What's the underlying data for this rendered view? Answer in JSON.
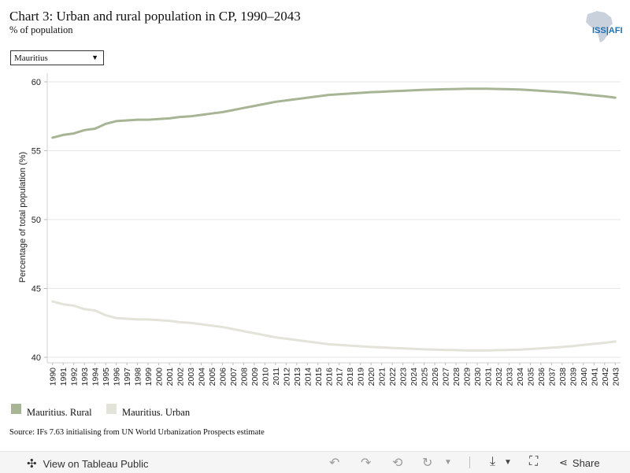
{
  "header": {
    "title": "Chart 3: Urban and rural population in CP, 1990–2043",
    "subtitle": "% of population",
    "logo_text": "ISS|AFI"
  },
  "filter": {
    "selected": "Mauritius"
  },
  "chart_data": {
    "type": "line",
    "ylabel": "Percentage of total population (%)",
    "xlabel": "",
    "ylim": [
      39.6,
      60.4
    ],
    "yticks": [
      40,
      45,
      50,
      55,
      60
    ],
    "grid": true,
    "legend_position": "bottom-left",
    "x": [
      "1990",
      "1991",
      "1992",
      "1993",
      "1994",
      "1995",
      "1996",
      "1997",
      "1998",
      "1999",
      "2000",
      "2001",
      "2002",
      "2003",
      "2004",
      "2005",
      "2006",
      "2007",
      "2008",
      "2009",
      "2010",
      "2011",
      "2012",
      "2013",
      "2014",
      "2015",
      "2016",
      "2017",
      "2018",
      "2019",
      "2020",
      "2021",
      "2022",
      "2023",
      "2024",
      "2025",
      "2026",
      "2027",
      "2028",
      "2029",
      "2030",
      "2031",
      "2032",
      "2033",
      "2034",
      "2035",
      "2036",
      "2037",
      "2038",
      "2039",
      "2040",
      "2041",
      "2042",
      "2043"
    ],
    "series": [
      {
        "name": "Mauritius. Rural",
        "color": "#a7b595",
        "values": [
          55.95,
          56.15,
          56.25,
          56.5,
          56.6,
          56.95,
          57.15,
          57.2,
          57.25,
          57.25,
          57.3,
          57.35,
          57.45,
          57.5,
          57.6,
          57.7,
          57.8,
          57.95,
          58.1,
          58.25,
          58.4,
          58.55,
          58.65,
          58.75,
          58.85,
          58.95,
          59.05,
          59.1,
          59.15,
          59.2,
          59.25,
          59.28,
          59.32,
          59.35,
          59.38,
          59.42,
          59.44,
          59.46,
          59.48,
          59.5,
          59.5,
          59.5,
          59.48,
          59.46,
          59.44,
          59.4,
          59.35,
          59.3,
          59.25,
          59.18,
          59.1,
          59.02,
          58.95,
          58.85
        ]
      },
      {
        "name": "Mauritius. Urban",
        "color": "#e3e3d9",
        "values": [
          44.05,
          43.85,
          43.75,
          43.5,
          43.4,
          43.05,
          42.85,
          42.8,
          42.75,
          42.75,
          42.7,
          42.65,
          42.55,
          42.5,
          42.4,
          42.3,
          42.2,
          42.05,
          41.9,
          41.75,
          41.6,
          41.45,
          41.35,
          41.25,
          41.15,
          41.05,
          40.95,
          40.9,
          40.85,
          40.8,
          40.75,
          40.72,
          40.68,
          40.65,
          40.62,
          40.58,
          40.56,
          40.54,
          40.52,
          40.5,
          40.5,
          40.5,
          40.52,
          40.54,
          40.56,
          40.6,
          40.65,
          40.7,
          40.75,
          40.82,
          40.9,
          40.98,
          41.05,
          41.15
        ]
      }
    ]
  },
  "source": "Source: IFs 7.63 initialising from UN World Urbanization Prospects estimate",
  "footer": {
    "view_label": "View on Tableau Public",
    "share_label": "Share"
  }
}
